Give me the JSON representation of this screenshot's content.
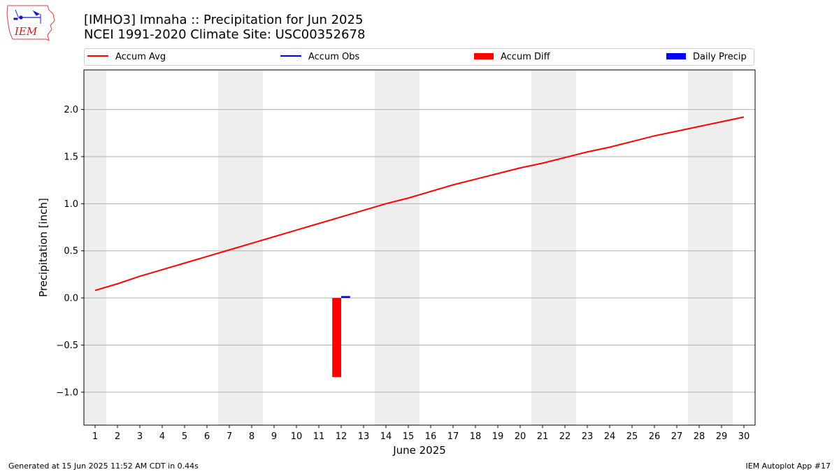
{
  "header": {
    "title_line1": "[IMHO3] Imnaha :: Precipitation for Jun 2025",
    "title_line2": "NCEI 1991-2020 Climate Site: USC00352678"
  },
  "logo": {
    "text": "IEM",
    "icon": "iem-iowa-logo"
  },
  "colors": {
    "avg": "#ff0000",
    "obs": "#0000ff",
    "diff": "#ff0000",
    "daily": "#0000ff",
    "weekend": "#eeeeee",
    "grid": "#b0b0b0"
  },
  "chart_data": {
    "type": "line",
    "xlabel": "June 2025",
    "ylabel": "Precipitation [inch]",
    "xlim": [
      0.5,
      30.5
    ],
    "ylim": [
      -1.35,
      2.42
    ],
    "yticks": [
      -1.0,
      -0.5,
      0.0,
      0.5,
      1.0,
      1.5,
      2.0
    ],
    "ytick_labels": [
      "−1.0",
      "−0.5",
      "0.0",
      "0.5",
      "1.0",
      "1.5",
      "2.0"
    ],
    "xticks": [
      1,
      2,
      3,
      4,
      5,
      6,
      7,
      8,
      9,
      10,
      11,
      12,
      13,
      14,
      15,
      16,
      17,
      18,
      19,
      20,
      21,
      22,
      23,
      24,
      25,
      26,
      27,
      28,
      29,
      30
    ],
    "grid": "horizontal",
    "legend_placement": "top",
    "weekend_shading": [
      1,
      7,
      8,
      14,
      15,
      21,
      22,
      28,
      29
    ],
    "legend": [
      {
        "label": "Accum Avg",
        "kind": "line",
        "color": "#ff0000"
      },
      {
        "label": "Accum Obs",
        "kind": "line",
        "color": "#0000ff"
      },
      {
        "label": "Accum Diff",
        "kind": "patch",
        "color": "#ff0000"
      },
      {
        "label": "Daily Precip",
        "kind": "patch",
        "color": "#0000ff"
      }
    ],
    "series": [
      {
        "name": "Accum Avg",
        "type": "line",
        "color": "#ff0000",
        "x": [
          1,
          2,
          3,
          4,
          5,
          6,
          7,
          8,
          9,
          10,
          11,
          12,
          13,
          14,
          15,
          16,
          17,
          18,
          19,
          20,
          21,
          22,
          23,
          24,
          25,
          26,
          27,
          28,
          29,
          30
        ],
        "values": [
          0.08,
          0.15,
          0.23,
          0.3,
          0.37,
          0.44,
          0.51,
          0.58,
          0.65,
          0.72,
          0.79,
          0.86,
          0.93,
          1.0,
          1.06,
          1.13,
          1.2,
          1.26,
          1.32,
          1.38,
          1.43,
          1.49,
          1.55,
          1.6,
          1.66,
          1.72,
          1.77,
          1.82,
          1.87,
          1.92
        ]
      },
      {
        "name": "Accum Diff",
        "type": "bar",
        "color": "#ff0000",
        "offset": -0.2,
        "x": [
          12
        ],
        "values": [
          -0.84
        ]
      },
      {
        "name": "Daily Precip",
        "type": "bar",
        "color": "#0000ff",
        "offset": 0.2,
        "x": [
          12
        ],
        "values": [
          0.02
        ]
      }
    ]
  },
  "footer": {
    "left": "Generated at 15 Jun 2025 11:52 AM CDT in 0.44s",
    "right": "IEM Autoplot App #17"
  }
}
